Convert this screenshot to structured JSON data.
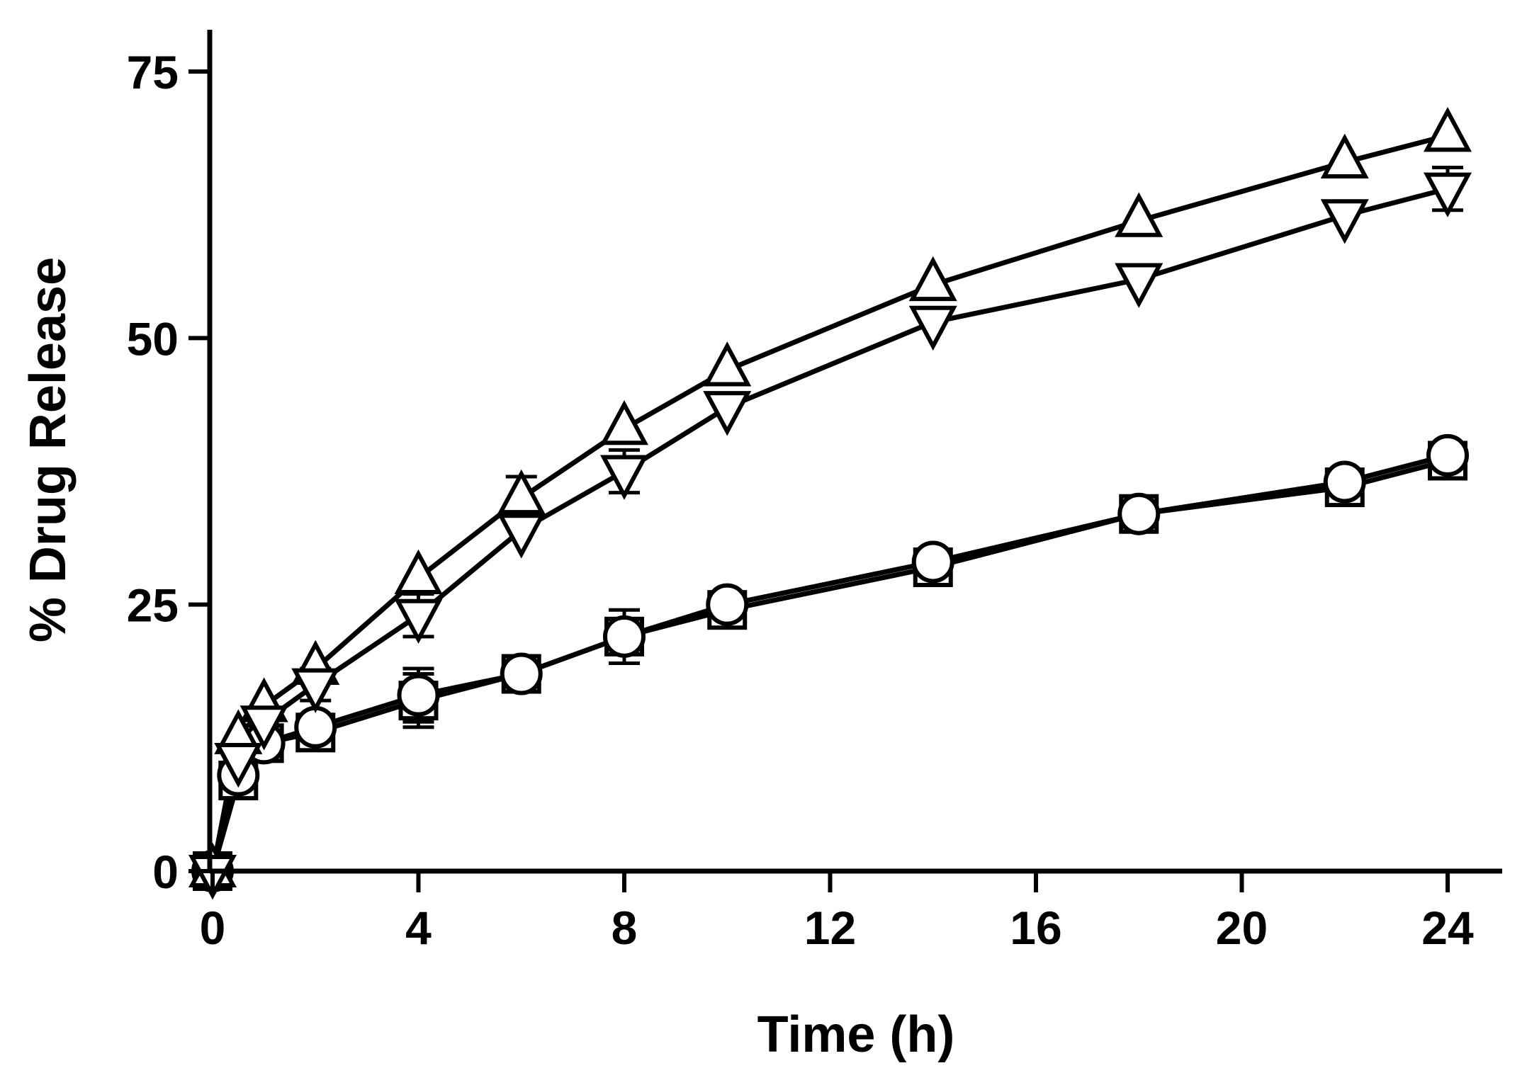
{
  "chart_data": {
    "type": "line",
    "title": "",
    "xlabel": "Time (h)",
    "ylabel": "% Drug Release",
    "xlim": [
      0,
      24
    ],
    "ylim": [
      0,
      75
    ],
    "xticks": [
      0,
      4,
      8,
      12,
      16,
      20,
      24
    ],
    "yticks": [
      0,
      25,
      50,
      75
    ],
    "grid": false,
    "legend": "none",
    "series": [
      {
        "name": "square",
        "marker": "square",
        "x": [
          0,
          0.5,
          1,
          2,
          4,
          6,
          8,
          10,
          14,
          18,
          22,
          24
        ],
        "y": [
          0,
          8.5,
          12,
          13,
          16,
          18.5,
          22,
          24.5,
          28.5,
          33.5,
          36,
          38.5
        ],
        "err": [
          0,
          0,
          0,
          0,
          2.5,
          0,
          2.5,
          0,
          0,
          0,
          0,
          0
        ]
      },
      {
        "name": "circle",
        "marker": "circle",
        "x": [
          0,
          0.5,
          1,
          2,
          4,
          6,
          8,
          10,
          14,
          18,
          22,
          24
        ],
        "y": [
          0,
          9,
          12,
          13.5,
          16.5,
          18.5,
          22,
          25,
          29,
          33.5,
          36.5,
          39
        ],
        "err": [
          0,
          0,
          0,
          0,
          2.5,
          0,
          0,
          0,
          0,
          0,
          0,
          0
        ]
      },
      {
        "name": "triangle-up",
        "marker": "triangle-up",
        "x": [
          0,
          0.5,
          1,
          2,
          4,
          6,
          8,
          10,
          14,
          18,
          22,
          24
        ],
        "y": [
          0,
          12.5,
          15.5,
          19,
          27.5,
          35,
          41.5,
          47,
          55,
          61,
          66.5,
          69
        ],
        "err": [
          0,
          0,
          0,
          0,
          0,
          2,
          0,
          0,
          0,
          0,
          0,
          0
        ]
      },
      {
        "name": "triangle-down",
        "marker": "triangle-down",
        "x": [
          0,
          0.5,
          1,
          2,
          4,
          6,
          8,
          10,
          14,
          18,
          22,
          24
        ],
        "y": [
          0,
          10.5,
          14,
          17.5,
          24,
          32,
          37.5,
          43.5,
          51.5,
          55.5,
          61.5,
          64
        ],
        "err": [
          0,
          0,
          0,
          1.5,
          2,
          0,
          2,
          0,
          0,
          0,
          0,
          2
        ]
      }
    ]
  }
}
